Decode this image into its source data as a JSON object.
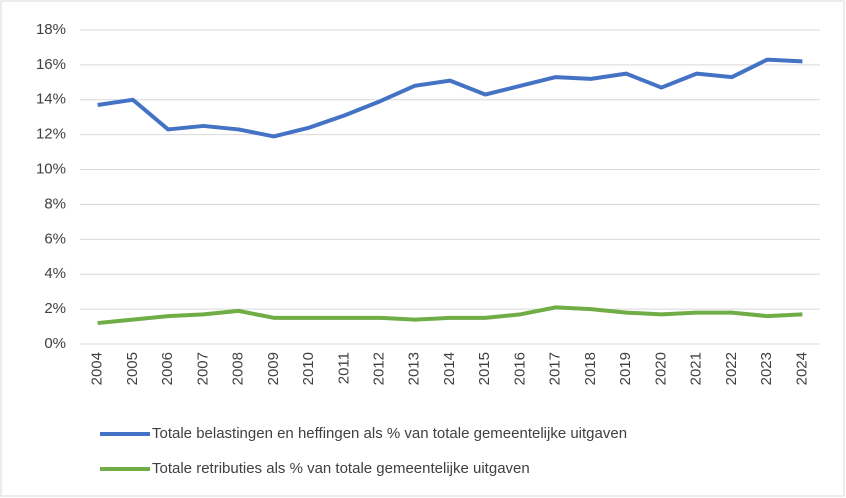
{
  "chart_data": {
    "type": "line",
    "categories": [
      "2004",
      "2005",
      "2006",
      "2007",
      "2008",
      "2009",
      "2010",
      "2011",
      "2012",
      "2013",
      "2014",
      "2015",
      "2016",
      "2017",
      "2018",
      "2019",
      "2020",
      "2021",
      "2022",
      "2023",
      "2024"
    ],
    "series": [
      {
        "name": "Totale belastingen en heffingen als % van totale gemeentelijke uitgaven",
        "color": "#4472c4",
        "values": [
          13.7,
          14.0,
          12.3,
          12.5,
          12.3,
          11.9,
          12.4,
          13.1,
          13.9,
          14.8,
          15.1,
          14.3,
          14.8,
          15.3,
          15.2,
          15.5,
          14.7,
          15.5,
          15.3,
          16.3,
          16.2
        ]
      },
      {
        "name": "Totale retributies als % van totale gemeentelijke uitgaven",
        "color": "#70ad47",
        "values": [
          1.2,
          1.4,
          1.6,
          1.7,
          1.9,
          1.5,
          1.5,
          1.5,
          1.5,
          1.4,
          1.5,
          1.5,
          1.7,
          2.1,
          2.0,
          1.8,
          1.7,
          1.8,
          1.8,
          1.6,
          1.7
        ]
      }
    ],
    "ylim": [
      0,
      18
    ],
    "yticks": [
      {
        "value": 0,
        "label": "0%"
      },
      {
        "value": 2,
        "label": "2%"
      },
      {
        "value": 4,
        "label": "4%"
      },
      {
        "value": 6,
        "label": "6%"
      },
      {
        "value": 8,
        "label": "8%"
      },
      {
        "value": 10,
        "label": "10%"
      },
      {
        "value": 12,
        "label": "12%"
      },
      {
        "value": 14,
        "label": "14%"
      },
      {
        "value": 16,
        "label": "16%"
      },
      {
        "value": 18,
        "label": "18%"
      }
    ],
    "grid": true,
    "legend": "bottom"
  }
}
